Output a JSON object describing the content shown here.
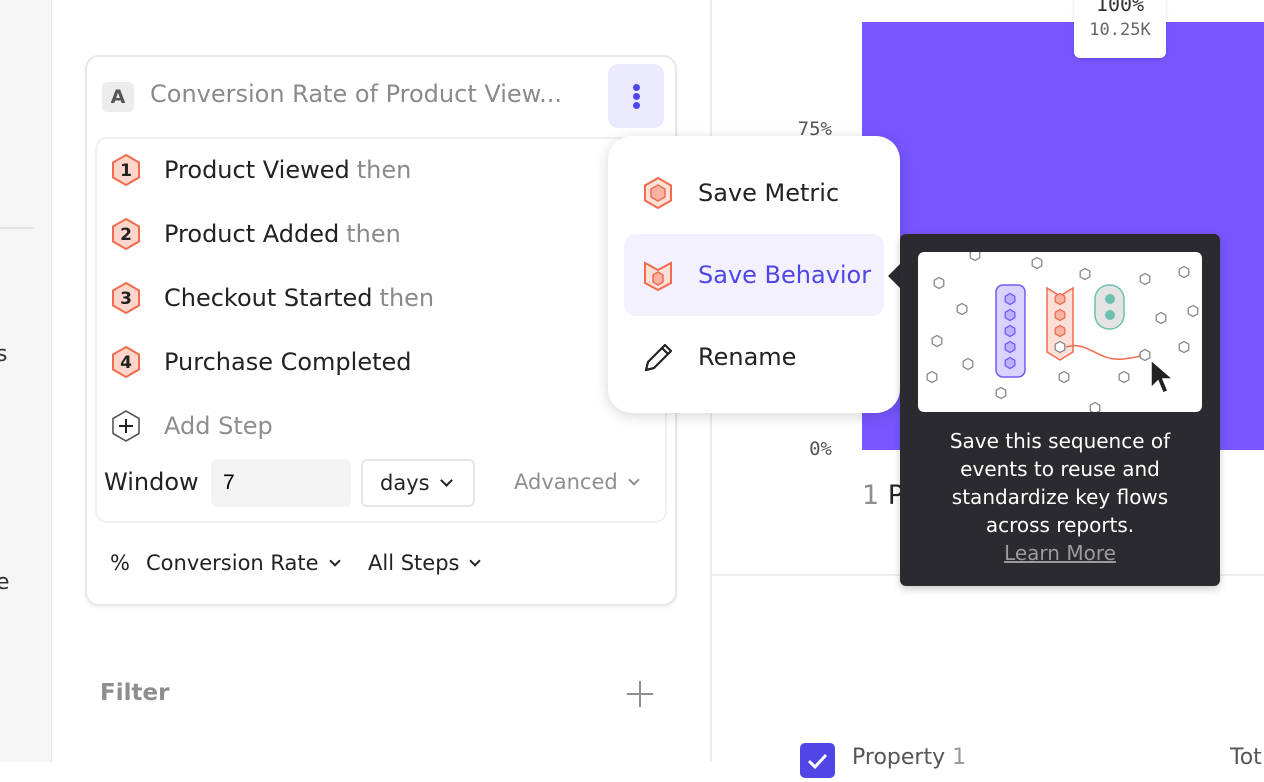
{
  "sidebar": {
    "partial_items": [
      "s",
      "e"
    ]
  },
  "metric": {
    "badge": "A",
    "title": "Conversion Rate of Product View...",
    "steps": [
      {
        "number": "1",
        "event": "Product Viewed",
        "suffix": "then"
      },
      {
        "number": "2",
        "event": "Product Added",
        "suffix": "then"
      },
      {
        "number": "3",
        "event": "Checkout Started",
        "suffix": "then"
      },
      {
        "number": "4",
        "event": "Purchase Completed",
        "suffix": ""
      }
    ],
    "add_step": "Add Step",
    "window_label": "Window",
    "window_value": "7",
    "window_unit": "days",
    "advanced": "Advanced",
    "measure_symbol": "%",
    "measure": "Conversion Rate",
    "steps_selector": "All Steps"
  },
  "filter": {
    "label": "Filter"
  },
  "menu": {
    "items": [
      {
        "label": "Save Metric",
        "icon": "hexagon-metric-icon"
      },
      {
        "label": "Save Behavior",
        "icon": "behavior-icon",
        "active": true
      },
      {
        "label": "Rename",
        "icon": "pencil-icon"
      }
    ]
  },
  "tooltip": {
    "lines": [
      "Save this sequence of",
      "events to reuse and",
      "standardize key flows",
      "across reports."
    ],
    "link": "Learn More"
  },
  "chart": {
    "bar_label_pct": "100%",
    "bar_label_count": "10.25K",
    "y_ticks": [
      "75%",
      "0%"
    ],
    "category_index": "1",
    "category_partial": "P",
    "bar_value_pct": 100,
    "bar_color": "#7856ff"
  },
  "legend_table": {
    "column": "Property",
    "column_suffix": "1",
    "total_partial": "Tot"
  },
  "colors": {
    "accent": "#5046e5",
    "step_orange": "#f26b4f",
    "tooltip_bg": "#2a2a2f"
  }
}
